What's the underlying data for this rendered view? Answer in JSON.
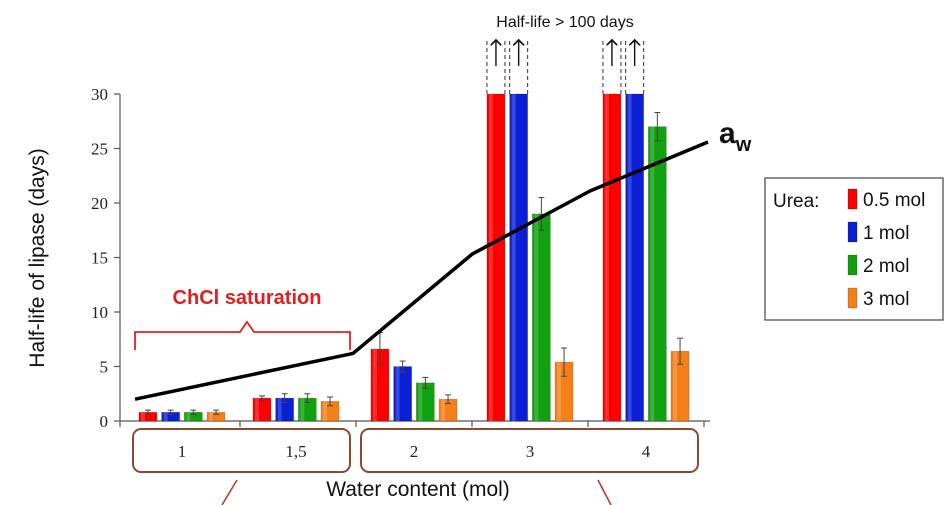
{
  "chart_data": {
    "type": "bar",
    "xlabel": "Water content (mol)",
    "ylabel": "Half-life of lipase (days)",
    "ylim": [
      0,
      30
    ],
    "yticks": [
      "0",
      "5",
      "10",
      "15",
      "20",
      "25",
      "30"
    ],
    "categories": [
      "1",
      "1,5",
      "2",
      "3",
      "4"
    ],
    "series": [
      {
        "name": "0.5 mol",
        "color": "#ff0000",
        "values": [
          0.8,
          2.1,
          6.6,
          30,
          30
        ],
        "errors": [
          0.2,
          0.2,
          1.5,
          0,
          0
        ]
      },
      {
        "name": "1 mol",
        "color": "#0a1fd6",
        "values": [
          0.8,
          2.1,
          5.0,
          30,
          30
        ],
        "errors": [
          0.2,
          0.4,
          0.5,
          0,
          0
        ]
      },
      {
        "name": "2 mol",
        "color": "#10a010",
        "values": [
          0.8,
          2.1,
          3.5,
          19,
          27
        ],
        "errors": [
          0.2,
          0.4,
          0.5,
          1.5,
          1.3
        ]
      },
      {
        "name": "3 mol",
        "color": "#f57f17",
        "values": [
          0.8,
          1.8,
          2.0,
          5.4,
          6.4
        ],
        "errors": [
          0.2,
          0.4,
          0.4,
          1.3,
          1.2
        ]
      }
    ],
    "aw_line": {
      "label": "a",
      "subscript": "w",
      "color": "#000000",
      "values": [
        2,
        6.2,
        15.3,
        21.1,
        25.6
      ]
    },
    "annotations": {
      "top_note": "Half-life > 100 days",
      "saturation": "ChCl saturation",
      "saturation_color": "#e02020"
    },
    "legend": {
      "title": "Urea:",
      "position": "right"
    }
  }
}
